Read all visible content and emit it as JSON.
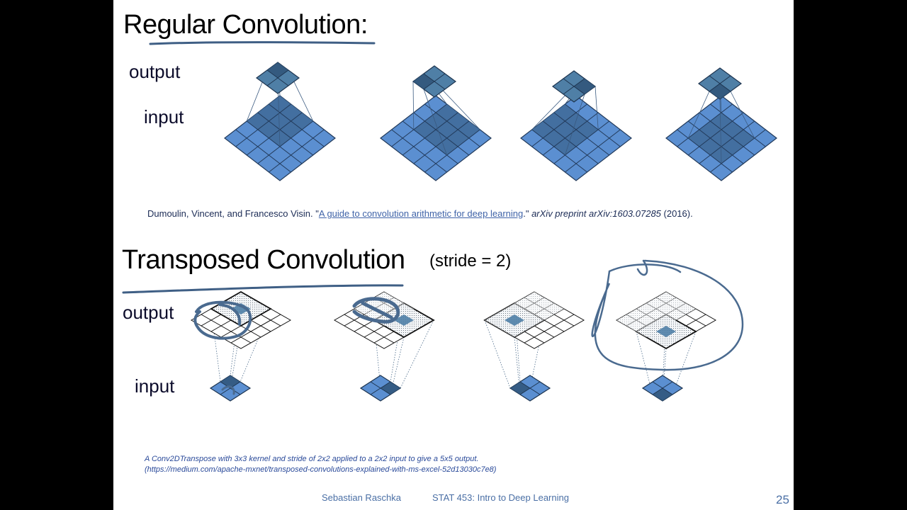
{
  "regular": {
    "title": "Regular Convolution:",
    "output_label": "output",
    "input_label": "input"
  },
  "citation": {
    "authors": "Dumoulin, Vincent, and Francesco Visin. \"",
    "link_text": "A guide to convolution arithmetic for deep learning",
    "after_link": ".\" ",
    "journal": "arXiv preprint arXiv:1603.07285",
    "year": " (2016)."
  },
  "transposed": {
    "title": "Transposed Convolution",
    "subtitle": "(stride = 2)",
    "output_label": "output",
    "input_label": "input"
  },
  "caption": {
    "line1": "A Conv2DTranspose with 3x3 kernel and stride of 2x2 applied to a 2x2 input to give a 5x5 output.",
    "line2": "(https://medium.com/apache-mxnet/transposed-convolutions-explained-with-ms-excel-52d13030c7e8)"
  },
  "footer": {
    "author": "Sebastian Raschka",
    "course": "STAT 453: Intro to Deep Learning",
    "page": "25"
  },
  "colors": {
    "grid_fill": "#5b8fd1",
    "grid_dark": "#3f6a98",
    "output_fill": "#4f7fa6",
    "annotation": "#3f5f85",
    "link": "#3f63a8"
  }
}
